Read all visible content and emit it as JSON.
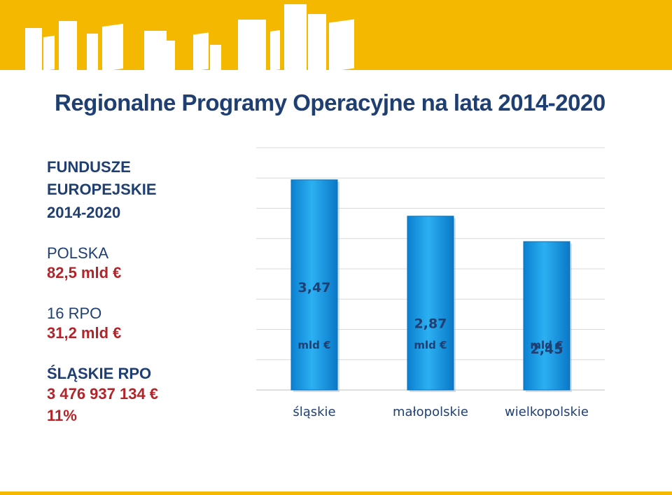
{
  "title": "Regionalne Programy Operacyjne na lata 2014-2020",
  "side_panel": {
    "heading": [
      "FUNDUSZE",
      "EUROPEJSKIE",
      "2014-2020"
    ],
    "poland_label": "POLSKA",
    "poland_value": "82,5 mld €",
    "rpo_label": "16 RPO",
    "rpo_value": "31,2 mld €",
    "silesia_label": "ŚLĄSKIE RPO",
    "silesia_value": "3 476 937 134 €",
    "silesia_share": "11%"
  },
  "colors": {
    "banner": "#f5b800",
    "bar": "#1e9fe6",
    "title": "#1f3f73",
    "highlight": "#b3242a"
  },
  "chart_data": {
    "type": "bar",
    "categories": [
      "śląskie",
      "małopolskie",
      "wielkopolskie"
    ],
    "values": [
      3.47,
      2.87,
      2.45
    ],
    "value_labels": [
      "3,47",
      "2,87",
      "2,45"
    ],
    "unit_label": "mld €",
    "ylim": [
      0,
      4
    ],
    "grid": true,
    "legend": false
  }
}
